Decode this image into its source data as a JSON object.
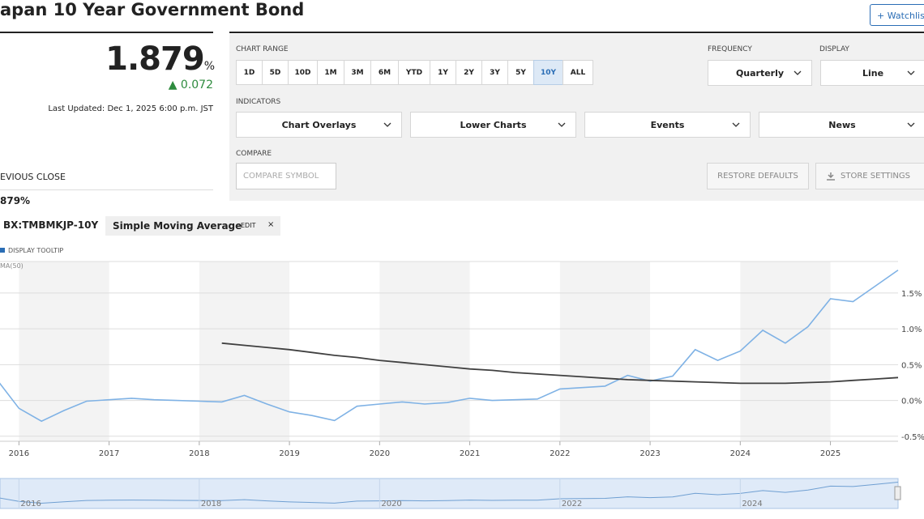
{
  "header": {
    "title": "apan 10 Year Government Bond",
    "watchlist": "Watchlis"
  },
  "quote": {
    "price": "1.879",
    "unit": "%",
    "change": "0.072",
    "updated": "Last Updated: Dec 1, 2025 6:00 p.m. JST",
    "prev_close_label": "EVIOUS CLOSE",
    "prev_close": "879%"
  },
  "controls": {
    "chart_range": {
      "label": "CHART RANGE",
      "options": [
        "1D",
        "5D",
        "10D",
        "1M",
        "3M",
        "6M",
        "YTD",
        "1Y",
        "2Y",
        "3Y",
        "5Y",
        "10Y",
        "ALL"
      ],
      "selected": "10Y"
    },
    "frequency": {
      "label": "FREQUENCY",
      "value": "Quarterly"
    },
    "display": {
      "label": "DISPLAY",
      "value": "Line"
    },
    "indicators": {
      "label": "INDICATORS",
      "options": [
        "Chart Overlays",
        "Lower Charts",
        "Events",
        "News"
      ]
    },
    "compare": {
      "label": "COMPARE",
      "placeholder": "COMPARE SYMBOL"
    },
    "restore": "RESTORE DEFAULTS",
    "store": "STORE SETTINGS"
  },
  "chart_bar": {
    "overlay": "Simple Moving Average",
    "edit": "EDIT",
    "close": "×",
    "tooltip": "DISPLAY TOOLTIP"
  },
  "chart_data": {
    "type": "line",
    "x": [
      2015.75,
      2016,
      2016.25,
      2016.5,
      2016.75,
      2017,
      2017.25,
      2017.5,
      2017.75,
      2018,
      2018.25,
      2018.5,
      2018.75,
      2019,
      2019.25,
      2019.5,
      2019.75,
      2020,
      2020.25,
      2020.5,
      2020.75,
      2021,
      2021.25,
      2021.5,
      2021.75,
      2022,
      2022.25,
      2022.5,
      2022.75,
      2023,
      2023.25,
      2023.5,
      2023.75,
      2024,
      2024.25,
      2024.5,
      2024.75,
      2025,
      2025.25,
      2025.5,
      2025.75
    ],
    "series": [
      {
        "name": "BX:TMBMKJP-10Y",
        "color": "#7fb2e5",
        "values": [
          0.3,
          -0.11,
          -0.29,
          -0.14,
          -0.01,
          0.01,
          0.03,
          0.01,
          0.0,
          -0.01,
          -0.02,
          0.07,
          -0.05,
          -0.16,
          -0.21,
          -0.28,
          -0.08,
          -0.05,
          -0.02,
          -0.05,
          -0.03,
          0.03,
          0.0,
          0.01,
          0.02,
          0.16,
          0.18,
          0.2,
          0.35,
          0.27,
          0.34,
          0.71,
          0.56,
          0.69,
          0.98,
          0.8,
          1.03,
          1.42,
          1.38,
          1.6,
          1.82
        ]
      },
      {
        "name": "MA(50)",
        "color": "#404040",
        "values": [
          null,
          null,
          null,
          null,
          null,
          null,
          null,
          null,
          null,
          null,
          0.8,
          0.77,
          0.74,
          0.71,
          0.67,
          0.63,
          0.6,
          0.56,
          0.53,
          0.5,
          0.47,
          0.44,
          0.42,
          0.39,
          0.37,
          0.35,
          0.33,
          0.31,
          0.29,
          0.28,
          0.27,
          0.26,
          0.25,
          0.24,
          0.24,
          0.24,
          0.25,
          0.26,
          0.28,
          0.3,
          0.32
        ]
      }
    ],
    "xlim": [
      2015.79,
      2025.75
    ],
    "xticks": [
      2016,
      2017,
      2018,
      2019,
      2020,
      2021,
      2022,
      2023,
      2024,
      2025
    ],
    "ylim": [
      -0.57,
      1.94
    ],
    "yticks": [
      {
        "value": -0.5,
        "label": "-0.5%"
      },
      {
        "value": 0,
        "label": "0.0%"
      },
      {
        "value": 0.5,
        "label": "0.5%"
      },
      {
        "value": 1,
        "label": "1.0%"
      },
      {
        "value": 1.5,
        "label": "1.5%"
      }
    ],
    "grid": true
  }
}
